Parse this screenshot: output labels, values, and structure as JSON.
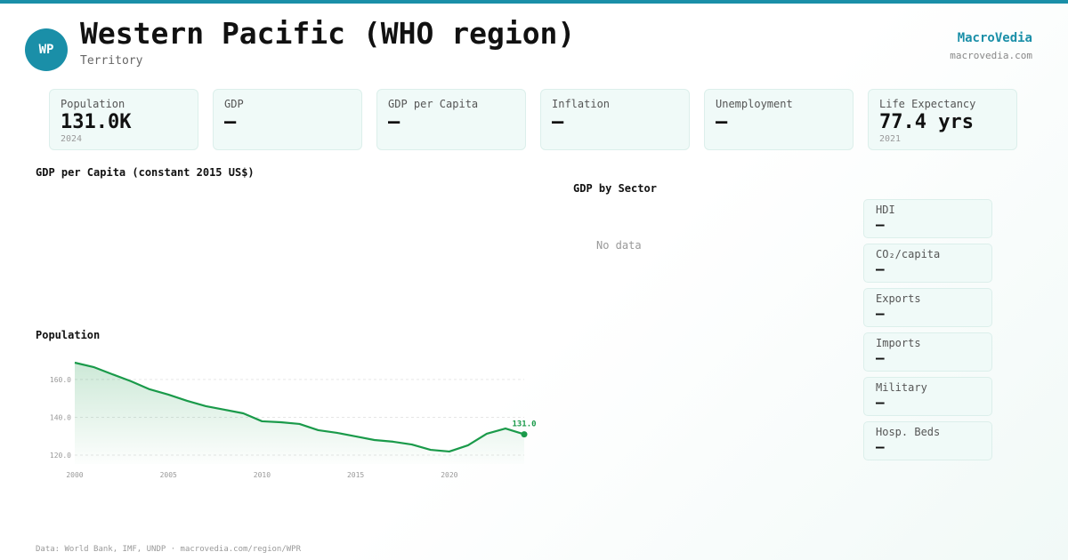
{
  "header": {
    "badge": "WP",
    "title": "Western Pacific (WHO region)",
    "subtitle": "Territory",
    "brand": "MacroVedia",
    "site": "macrovedia.com"
  },
  "stats": [
    {
      "label": "Population",
      "value": "131.0K",
      "note": "2024"
    },
    {
      "label": "GDP",
      "value": "—"
    },
    {
      "label": "GDP per Capita",
      "value": "—"
    },
    {
      "label": "Inflation",
      "value": "—"
    },
    {
      "label": "Unemployment",
      "value": "—"
    },
    {
      "label": "Life Expectancy",
      "value": "77.4 yrs",
      "note": "2021"
    }
  ],
  "gdp_chart": {
    "title": "GDP per Capita (constant 2015 US$)"
  },
  "sector_chart": {
    "title": "GDP by Sector",
    "message": "No data"
  },
  "side_metrics": [
    {
      "label": "HDI",
      "value": "—"
    },
    {
      "label": "CO₂/capita",
      "value": "—"
    },
    {
      "label": "Exports",
      "value": "—"
    },
    {
      "label": "Imports",
      "value": "—"
    },
    {
      "label": "Military",
      "value": "—"
    },
    {
      "label": "Hosp. Beds",
      "value": "—"
    }
  ],
  "chart_data": {
    "type": "line",
    "title": "Population",
    "x": [
      2000,
      2001,
      2002,
      2003,
      2004,
      2005,
      2006,
      2007,
      2008,
      2009,
      2010,
      2011,
      2012,
      2013,
      2014,
      2015,
      2016,
      2017,
      2018,
      2019,
      2020,
      2021,
      2022,
      2023,
      2024
    ],
    "series": [
      {
        "name": "Population",
        "color": "#1a9a4a",
        "values": [
          168.9,
          166.6,
          162.8,
          159.1,
          154.8,
          152,
          148.7,
          145.9,
          144,
          142.1,
          137.9,
          137.4,
          136.5,
          133.2,
          131.8,
          129.9,
          128,
          127.1,
          125.6,
          122.8,
          121.9,
          125.2,
          131.3,
          134.1,
          131.0
        ],
        "value_labels": [
          null,
          null,
          null,
          null,
          null,
          null,
          null,
          null,
          null,
          null,
          null,
          null,
          null,
          null,
          null,
          null,
          null,
          null,
          null,
          null,
          null,
          null,
          null,
          null,
          "131.0"
        ]
      }
    ],
    "xlim": [
      2000,
      2024
    ],
    "xticks": [
      2000,
      2005,
      2010,
      2015,
      2020
    ],
    "ylim": [
      115.3,
      168.9
    ],
    "yticks": [
      {
        "value": 120,
        "label": "120.0"
      },
      {
        "value": 140,
        "label": "140.0"
      },
      {
        "value": 160,
        "label": "160.0"
      }
    ],
    "grid": true
  },
  "footer": "Data: World Bank, IMF, UNDP · macrovedia.com/region/WPR"
}
